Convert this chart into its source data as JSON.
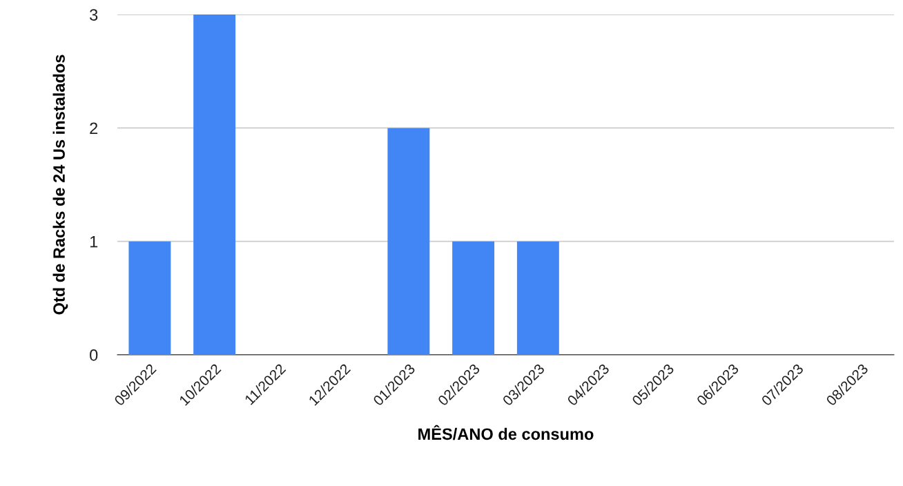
{
  "chart_data": {
    "type": "bar",
    "xlabel": "MÊS/ANO de consumo",
    "ylabel": "Qtd de Racks de 24 Us instalados",
    "categories": [
      "09/2022",
      "10/2022",
      "11/2022",
      "12/2022",
      "01/2023",
      "02/2023",
      "03/2023",
      "04/2023",
      "05/2023",
      "06/2023",
      "07/2023",
      "08/2023"
    ],
    "values": [
      1,
      3,
      0,
      0,
      2,
      1,
      1,
      0,
      0,
      0,
      0,
      0
    ],
    "color": "#4285f4",
    "ylim": [
      0,
      3
    ],
    "yticks": [
      0,
      1,
      2,
      3
    ],
    "grid": "y",
    "legend": false
  }
}
